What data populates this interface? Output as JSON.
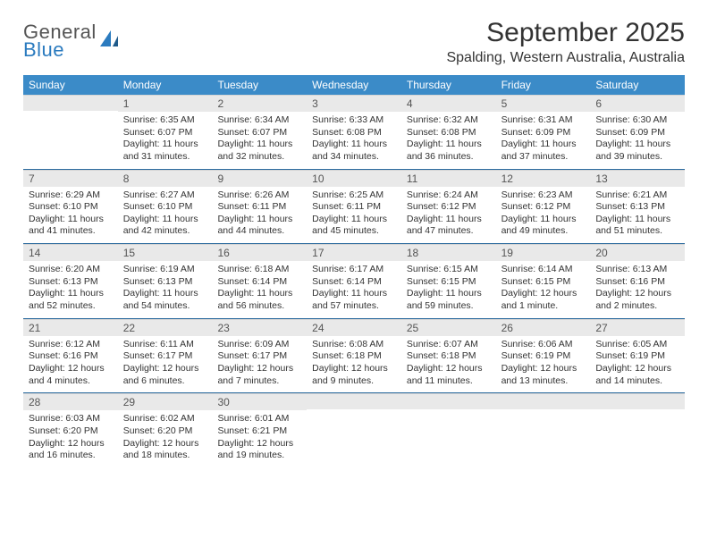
{
  "brand": {
    "general": "General",
    "blue": "Blue"
  },
  "title": "September 2025",
  "location": "Spalding, Western Australia, Australia",
  "colors": {
    "header_bg": "#3b8bc8",
    "header_text": "#ffffff",
    "daynum_bg": "#e9e9e9",
    "week_border": "#2b6a9e",
    "text": "#333333",
    "logo_blue": "#2b7bbf"
  },
  "day_names": [
    "Sunday",
    "Monday",
    "Tuesday",
    "Wednesday",
    "Thursday",
    "Friday",
    "Saturday"
  ],
  "weeks": [
    [
      null,
      {
        "n": "1",
        "sunrise": "Sunrise: 6:35 AM",
        "sunset": "Sunset: 6:07 PM",
        "daylight": "Daylight: 11 hours and 31 minutes."
      },
      {
        "n": "2",
        "sunrise": "Sunrise: 6:34 AM",
        "sunset": "Sunset: 6:07 PM",
        "daylight": "Daylight: 11 hours and 32 minutes."
      },
      {
        "n": "3",
        "sunrise": "Sunrise: 6:33 AM",
        "sunset": "Sunset: 6:08 PM",
        "daylight": "Daylight: 11 hours and 34 minutes."
      },
      {
        "n": "4",
        "sunrise": "Sunrise: 6:32 AM",
        "sunset": "Sunset: 6:08 PM",
        "daylight": "Daylight: 11 hours and 36 minutes."
      },
      {
        "n": "5",
        "sunrise": "Sunrise: 6:31 AM",
        "sunset": "Sunset: 6:09 PM",
        "daylight": "Daylight: 11 hours and 37 minutes."
      },
      {
        "n": "6",
        "sunrise": "Sunrise: 6:30 AM",
        "sunset": "Sunset: 6:09 PM",
        "daylight": "Daylight: 11 hours and 39 minutes."
      }
    ],
    [
      {
        "n": "7",
        "sunrise": "Sunrise: 6:29 AM",
        "sunset": "Sunset: 6:10 PM",
        "daylight": "Daylight: 11 hours and 41 minutes."
      },
      {
        "n": "8",
        "sunrise": "Sunrise: 6:27 AM",
        "sunset": "Sunset: 6:10 PM",
        "daylight": "Daylight: 11 hours and 42 minutes."
      },
      {
        "n": "9",
        "sunrise": "Sunrise: 6:26 AM",
        "sunset": "Sunset: 6:11 PM",
        "daylight": "Daylight: 11 hours and 44 minutes."
      },
      {
        "n": "10",
        "sunrise": "Sunrise: 6:25 AM",
        "sunset": "Sunset: 6:11 PM",
        "daylight": "Daylight: 11 hours and 45 minutes."
      },
      {
        "n": "11",
        "sunrise": "Sunrise: 6:24 AM",
        "sunset": "Sunset: 6:12 PM",
        "daylight": "Daylight: 11 hours and 47 minutes."
      },
      {
        "n": "12",
        "sunrise": "Sunrise: 6:23 AM",
        "sunset": "Sunset: 6:12 PM",
        "daylight": "Daylight: 11 hours and 49 minutes."
      },
      {
        "n": "13",
        "sunrise": "Sunrise: 6:21 AM",
        "sunset": "Sunset: 6:13 PM",
        "daylight": "Daylight: 11 hours and 51 minutes."
      }
    ],
    [
      {
        "n": "14",
        "sunrise": "Sunrise: 6:20 AM",
        "sunset": "Sunset: 6:13 PM",
        "daylight": "Daylight: 11 hours and 52 minutes."
      },
      {
        "n": "15",
        "sunrise": "Sunrise: 6:19 AM",
        "sunset": "Sunset: 6:13 PM",
        "daylight": "Daylight: 11 hours and 54 minutes."
      },
      {
        "n": "16",
        "sunrise": "Sunrise: 6:18 AM",
        "sunset": "Sunset: 6:14 PM",
        "daylight": "Daylight: 11 hours and 56 minutes."
      },
      {
        "n": "17",
        "sunrise": "Sunrise: 6:17 AM",
        "sunset": "Sunset: 6:14 PM",
        "daylight": "Daylight: 11 hours and 57 minutes."
      },
      {
        "n": "18",
        "sunrise": "Sunrise: 6:15 AM",
        "sunset": "Sunset: 6:15 PM",
        "daylight": "Daylight: 11 hours and 59 minutes."
      },
      {
        "n": "19",
        "sunrise": "Sunrise: 6:14 AM",
        "sunset": "Sunset: 6:15 PM",
        "daylight": "Daylight: 12 hours and 1 minute."
      },
      {
        "n": "20",
        "sunrise": "Sunrise: 6:13 AM",
        "sunset": "Sunset: 6:16 PM",
        "daylight": "Daylight: 12 hours and 2 minutes."
      }
    ],
    [
      {
        "n": "21",
        "sunrise": "Sunrise: 6:12 AM",
        "sunset": "Sunset: 6:16 PM",
        "daylight": "Daylight: 12 hours and 4 minutes."
      },
      {
        "n": "22",
        "sunrise": "Sunrise: 6:11 AM",
        "sunset": "Sunset: 6:17 PM",
        "daylight": "Daylight: 12 hours and 6 minutes."
      },
      {
        "n": "23",
        "sunrise": "Sunrise: 6:09 AM",
        "sunset": "Sunset: 6:17 PM",
        "daylight": "Daylight: 12 hours and 7 minutes."
      },
      {
        "n": "24",
        "sunrise": "Sunrise: 6:08 AM",
        "sunset": "Sunset: 6:18 PM",
        "daylight": "Daylight: 12 hours and 9 minutes."
      },
      {
        "n": "25",
        "sunrise": "Sunrise: 6:07 AM",
        "sunset": "Sunset: 6:18 PM",
        "daylight": "Daylight: 12 hours and 11 minutes."
      },
      {
        "n": "26",
        "sunrise": "Sunrise: 6:06 AM",
        "sunset": "Sunset: 6:19 PM",
        "daylight": "Daylight: 12 hours and 13 minutes."
      },
      {
        "n": "27",
        "sunrise": "Sunrise: 6:05 AM",
        "sunset": "Sunset: 6:19 PM",
        "daylight": "Daylight: 12 hours and 14 minutes."
      }
    ],
    [
      {
        "n": "28",
        "sunrise": "Sunrise: 6:03 AM",
        "sunset": "Sunset: 6:20 PM",
        "daylight": "Daylight: 12 hours and 16 minutes."
      },
      {
        "n": "29",
        "sunrise": "Sunrise: 6:02 AM",
        "sunset": "Sunset: 6:20 PM",
        "daylight": "Daylight: 12 hours and 18 minutes."
      },
      {
        "n": "30",
        "sunrise": "Sunrise: 6:01 AM",
        "sunset": "Sunset: 6:21 PM",
        "daylight": "Daylight: 12 hours and 19 minutes."
      },
      null,
      null,
      null,
      null
    ]
  ]
}
